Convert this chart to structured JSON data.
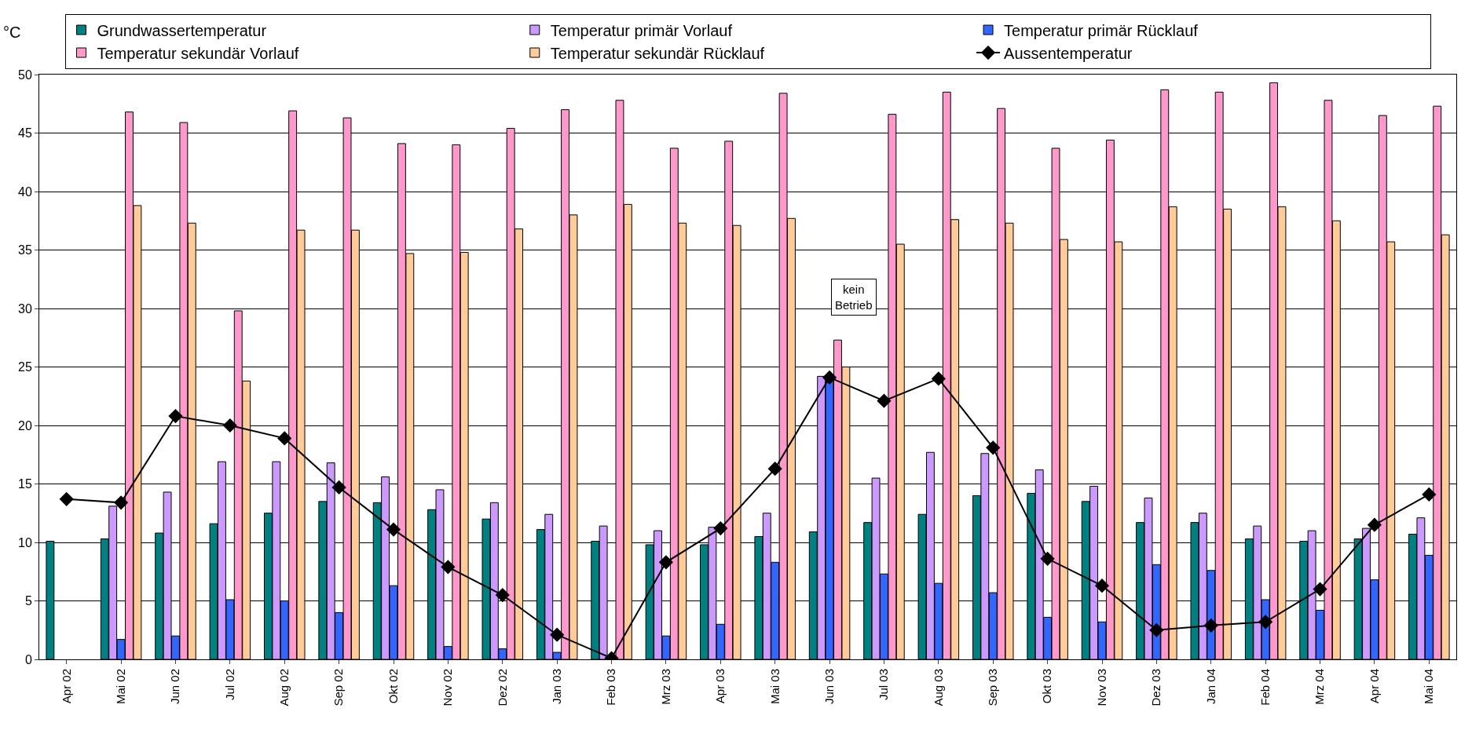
{
  "chart_data": {
    "type": "bar",
    "ylabel": "°C",
    "categories": [
      "Apr 02",
      "Mai 02",
      "Jun 02",
      "Jul 02",
      "Aug 02",
      "Sep 02",
      "Okt 02",
      "Nov 02",
      "Dez 02",
      "Jan 03",
      "Feb 03",
      "Mrz 03",
      "Apr 03",
      "Mai 03",
      "Jun 03",
      "Jul 03",
      "Aug 03",
      "Sep 03",
      "Okt 03",
      "Nov 03",
      "Dez 03",
      "Jan 04",
      "Feb 04",
      "Mrz 04",
      "Apr 04",
      "Mai 04"
    ],
    "series": [
      {
        "name": "Grundwassertemperatur",
        "color": "#008080",
        "values": [
          10.1,
          10.3,
          10.8,
          11.6,
          12.5,
          13.5,
          13.4,
          12.8,
          12.0,
          11.1,
          10.1,
          9.8,
          9.8,
          10.5,
          10.9,
          11.7,
          12.4,
          14.0,
          14.2,
          13.5,
          11.7,
          11.7,
          10.3,
          10.1,
          10.3,
          10.7
        ]
      },
      {
        "name": "Temperatur primär Vorlauf",
        "color": "#cc99ff",
        "values": [
          null,
          13.1,
          14.3,
          16.9,
          16.9,
          16.8,
          15.6,
          14.5,
          13.4,
          12.4,
          11.4,
          11.0,
          11.3,
          12.5,
          24.2,
          15.5,
          17.7,
          17.6,
          16.2,
          14.8,
          13.8,
          12.5,
          11.4,
          11.0,
          11.2,
          12.1
        ]
      },
      {
        "name": "Temperatur primär Rücklauf",
        "color": "#3366ff",
        "values": [
          null,
          1.7,
          2.0,
          5.1,
          5.0,
          4.0,
          6.3,
          1.1,
          0.9,
          0.6,
          0.1,
          2.0,
          3.0,
          8.3,
          24.0,
          7.3,
          6.5,
          5.7,
          3.6,
          3.2,
          8.1,
          7.6,
          5.1,
          4.2,
          6.8,
          8.9
        ]
      },
      {
        "name": "Temperatur sekundär Vorlauf",
        "color": "#ff99cc",
        "values": [
          null,
          46.8,
          45.9,
          29.8,
          46.9,
          46.3,
          44.1,
          44.0,
          45.4,
          47.0,
          47.8,
          43.7,
          44.3,
          48.4,
          27.3,
          46.6,
          48.5,
          47.1,
          43.7,
          44.4,
          48.7,
          48.5,
          49.3,
          47.8,
          46.5,
          47.3
        ]
      },
      {
        "name": "Temperatur sekundär Rücklauf",
        "color": "#ffcc99",
        "values": [
          null,
          38.8,
          37.3,
          23.8,
          36.7,
          36.7,
          34.7,
          34.8,
          36.8,
          38.0,
          38.9,
          37.3,
          37.1,
          37.7,
          25.0,
          35.5,
          37.6,
          37.3,
          35.9,
          35.7,
          38.7,
          38.5,
          38.7,
          37.5,
          35.7,
          36.3
        ]
      },
      {
        "name": "Aussentemperatur",
        "type": "line",
        "marker": "diamond",
        "color": "#000000",
        "values": [
          13.7,
          13.4,
          20.8,
          20.0,
          18.9,
          14.7,
          11.1,
          7.9,
          5.5,
          2.1,
          0.1,
          8.3,
          11.2,
          16.3,
          24.1,
          22.1,
          24.0,
          18.1,
          8.6,
          6.3,
          2.5,
          2.9,
          3.2,
          6.0,
          11.5,
          14.1
        ]
      }
    ],
    "ylim": [
      0,
      50
    ],
    "yticks": [
      0,
      5,
      10,
      15,
      20,
      25,
      30,
      35,
      40,
      45,
      50
    ],
    "grid": "y",
    "legend": "top",
    "annotations": [
      "kein Betrieb"
    ]
  }
}
